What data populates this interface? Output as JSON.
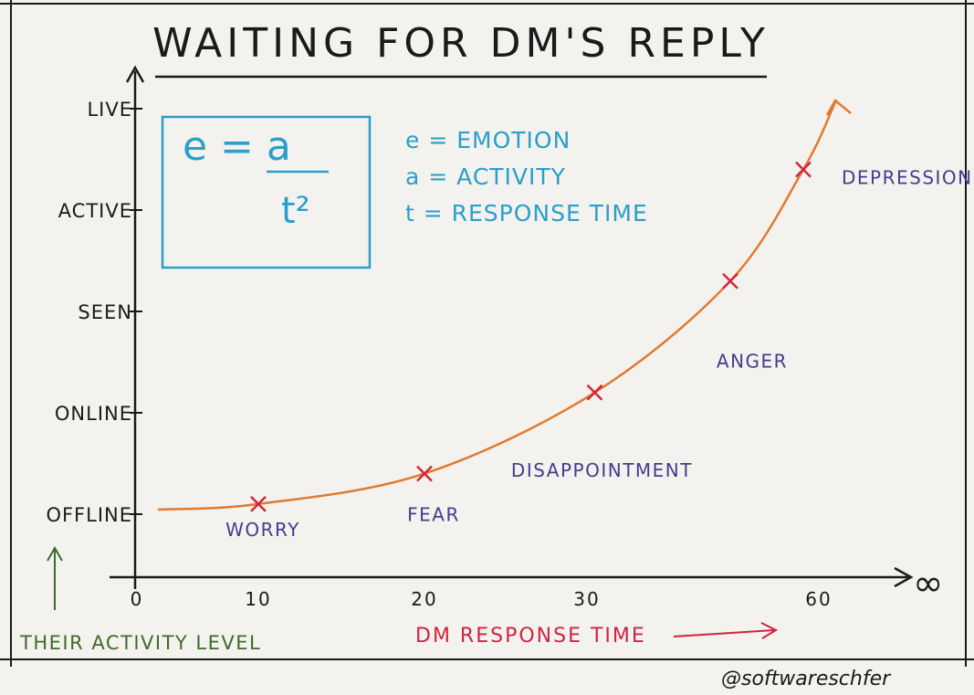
{
  "title": "WAITING FOR DM'S REPLY",
  "credit": "@softwareschfer",
  "colors": {
    "background": "#f3f2ee",
    "ink": "#1a1a1a",
    "curve": "#e07a2e",
    "marker": "#d6243a",
    "emotion_label": "#4a3a8c",
    "formula": "#2a9fc9",
    "ylabel": "#3f6b2a",
    "xlabel": "#d0243f"
  },
  "formula": {
    "numerator_expr": "e = a",
    "denominator": "t²",
    "legend": [
      "e = EMOTION",
      "a = ACTIVITY",
      "t = RESPONSE TIME"
    ]
  },
  "chart_data": {
    "type": "line",
    "xlabel": "DM RESPONSE TIME",
    "ylabel": "THEIR ACTIVITY LEVEL",
    "x_ticks": [
      "0",
      "10",
      "20",
      "30",
      "60"
    ],
    "x_end_label": "∞",
    "y_ticks": [
      "OFFLINE",
      "ONLINE",
      "SEEN",
      "ACTIVE",
      "LIVE"
    ],
    "points": [
      {
        "label": "WORRY",
        "x": 10,
        "y": 0.1
      },
      {
        "label": "FEAR",
        "x": 20,
        "y": 0.4
      },
      {
        "label": "DISAPPOINTMENT",
        "x": 31,
        "y": 1.2
      },
      {
        "label": "ANGER",
        "x": 38,
        "y": 2.3
      },
      {
        "label": "DEPRESSION",
        "x": 43,
        "y": 3.4
      }
    ]
  }
}
